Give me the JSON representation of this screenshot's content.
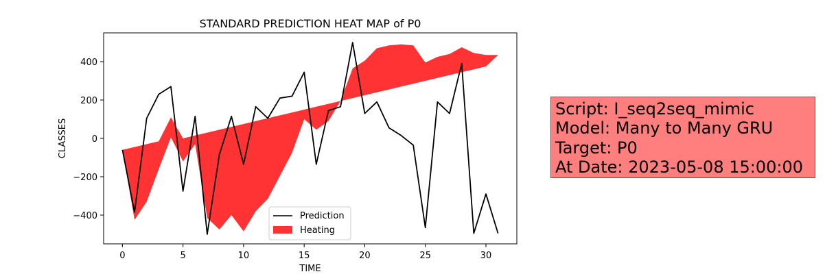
{
  "chart_data": {
    "type": "line",
    "title": "STANDARD PREDICTION HEAT MAP of P0",
    "xlabel": "TIME",
    "ylabel": "CLASSES",
    "xlim": [
      -1.55,
      32.55
    ],
    "ylim": [
      -550,
      550
    ],
    "xticks": [
      0,
      5,
      10,
      15,
      20,
      25,
      30
    ],
    "yticks": [
      -400,
      -200,
      0,
      200,
      400
    ],
    "legend_position": "lower center",
    "grid": false,
    "series": [
      {
        "name": "Prediction",
        "color": "#000000",
        "x": [
          0,
          1,
          2,
          3,
          4,
          5,
          6,
          7,
          8,
          9,
          10,
          11,
          12,
          13,
          14,
          15,
          16,
          17,
          18,
          19,
          20,
          21,
          22,
          23,
          24,
          25,
          26,
          27,
          28,
          29,
          30,
          31
        ],
        "values": [
          -60,
          -385,
          105,
          230,
          270,
          -275,
          115,
          -500,
          -85,
          115,
          -135,
          165,
          105,
          210,
          220,
          345,
          -135,
          145,
          165,
          500,
          130,
          190,
          55,
          15,
          -35,
          -465,
          190,
          130,
          390,
          -495,
          -290,
          -495
        ]
      }
    ],
    "fill": {
      "name": "Heating",
      "color": "#ff0000",
      "alpha": 0.8,
      "x": [
        0,
        1,
        2,
        3,
        4,
        5,
        6,
        7,
        8,
        9,
        10,
        11,
        12,
        13,
        14,
        15,
        16,
        17,
        18,
        19,
        20,
        21,
        22,
        23,
        24,
        25,
        26,
        27,
        28,
        29,
        30,
        31
      ],
      "upper": [
        -60,
        -45,
        -30,
        -15,
        110,
        0,
        15,
        30,
        45,
        60,
        75,
        90,
        105,
        120,
        135,
        150,
        165,
        180,
        195,
        365,
        405,
        470,
        485,
        490,
        485,
        395,
        425,
        440,
        475,
        445,
        435,
        435
      ],
      "lower": [
        -60,
        -425,
        -330,
        -160,
        5,
        -120,
        -30,
        -415,
        -475,
        -400,
        -485,
        -380,
        -315,
        -195,
        -75,
        100,
        45,
        90,
        195,
        210,
        225,
        240,
        255,
        270,
        285,
        300,
        315,
        330,
        345,
        360,
        375,
        435
      ]
    }
  },
  "info_box": {
    "line1": "Script: I_seq2seq_mimic",
    "line2": "Model: Many to Many GRU",
    "line3": "Target: P0",
    "line4": "At Date: 2023-05-08 15:00:00",
    "background": "#ff7f7f"
  }
}
